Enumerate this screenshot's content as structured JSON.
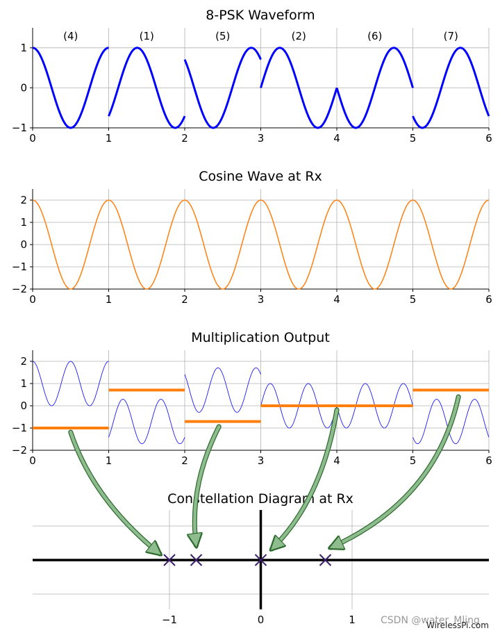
{
  "chart_data": [
    {
      "type": "line",
      "title": "8-PSK Waveform",
      "xlim": [
        0,
        6
      ],
      "ylim": [
        -1,
        1.5
      ],
      "xticks": [
        "0",
        "1",
        "2",
        "3",
        "4",
        "5",
        "6"
      ],
      "yticks": [
        "−1",
        "0",
        "1"
      ],
      "grid": true,
      "symbol_labels": [
        "(4)",
        "(1)",
        "(5)",
        "(2)",
        "(6)",
        "(7)"
      ],
      "symbols": [
        4,
        1,
        5,
        2,
        6,
        7
      ],
      "series": [
        {
          "values_formula": "sin(2*pi*t + phase(symbol) - pi/2)",
          "color": "#0000ff"
        }
      ]
    },
    {
      "type": "line",
      "title": "Cosine Wave at Rx",
      "xlim": [
        0,
        6
      ],
      "ylim": [
        -2,
        2.5
      ],
      "xticks": [
        "0",
        "1",
        "2",
        "3",
        "4",
        "5",
        "6"
      ],
      "yticks": [
        "−2",
        "−1",
        "0",
        "1",
        "2"
      ],
      "grid": true,
      "amplitude": 2,
      "frequency": 1,
      "series": [
        {
          "color": "#ff7f0e"
        }
      ]
    },
    {
      "type": "line",
      "title": "Multiplication Output",
      "xlim": [
        0,
        6
      ],
      "ylim": [
        -2,
        2.5
      ],
      "xticks": [
        "0",
        "1",
        "2",
        "3",
        "4",
        "5",
        "6"
      ],
      "yticks": [
        "−2",
        "−1",
        "0",
        "1",
        "2"
      ],
      "grid": true,
      "segment_means": [
        -1.0,
        0.707,
        -0.707,
        0.0,
        0.0,
        0.707
      ],
      "series": [
        {
          "color": "#0000ff"
        },
        {
          "color": "#ff7f0e"
        }
      ]
    },
    {
      "type": "scatter",
      "title": "Constellation Diagram at Rx",
      "xlim": [
        -2.5,
        2.5
      ],
      "ylim": [
        -0.35,
        0.5
      ],
      "xticks": [
        "−1",
        "0",
        "1"
      ],
      "grid": true,
      "points": [
        {
          "x": -1.0,
          "y": 0
        },
        {
          "x": -0.707,
          "y": 0
        },
        {
          "x": 0.0,
          "y": 0
        },
        {
          "x": 0.707,
          "y": 0
        }
      ],
      "marker_color": "#3b1f6b"
    }
  ],
  "colors": {
    "psk": "#0000ff",
    "cosine": "#ff7f0e",
    "mean": "#ff7f0e",
    "arrow_fill": "#8fbc8f",
    "arrow_edge": "#2e6b2e"
  },
  "watermark": {
    "csdn": "CSDN @water_Mling",
    "site": "WirelessPi.com"
  }
}
